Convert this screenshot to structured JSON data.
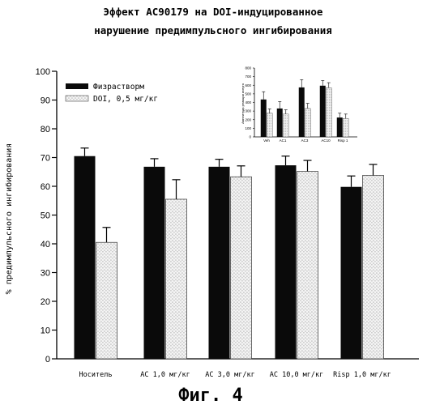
{
  "title_line1": "Эффект AC90179 на DOI-индуцированное",
  "title_line2": "нарушение предимпульсного ингибирования",
  "figure_label": "Фиг. 4",
  "colors": {
    "vehicle": "#0a0a0a",
    "doi_fill": "#f4f4f4",
    "doi_dots": "#6a6a6a"
  },
  "chart_data": [
    {
      "type": "bar",
      "title": "",
      "ylabel": "% предимпульсного ингибирования",
      "xlabel": "",
      "ylim": [
        0,
        100
      ],
      "yticks": [
        0,
        10,
        20,
        30,
        40,
        50,
        60,
        70,
        80,
        90,
        100
      ],
      "categories": [
        "Носитель",
        "AC 1,0 мг/кг",
        "AC 3,0 мг/кг",
        "AC 10,0 мг/кг",
        "Risp 1,0 мг/кг"
      ],
      "legend_position": "top-left",
      "grid": false,
      "series": [
        {
          "name": "Физрастворм",
          "values": [
            70.5,
            66.8,
            66.8,
            67.3,
            59.8
          ],
          "errors": [
            2.8,
            2.8,
            2.6,
            3.2,
            3.8
          ]
        },
        {
          "name": "DOI, 0,5 мг/кг",
          "values": [
            40.5,
            55.5,
            63.3,
            65.2,
            63.8
          ],
          "errors": [
            5.2,
            6.8,
            3.8,
            3.8,
            3.8
          ]
        }
      ]
    },
    {
      "type": "bar",
      "title": "",
      "ylabel": "Амплитуда реакции испуга",
      "xlabel": "",
      "ylim": [
        0,
        800
      ],
      "yticks": [
        0,
        100,
        200,
        300,
        400,
        500,
        600,
        700,
        800
      ],
      "categories": [
        "Veh",
        "AC1",
        "AC3",
        "AC10",
        "Risp 1"
      ],
      "legend_position": "none",
      "grid": false,
      "series": [
        {
          "values": [
            435,
            330,
            575,
            595,
            225
          ],
          "errors": [
            90,
            80,
            90,
            60,
            50
          ]
        },
        {
          "values": [
            275,
            265,
            330,
            570,
            215
          ],
          "errors": [
            50,
            50,
            60,
            60,
            50
          ]
        }
      ]
    }
  ]
}
